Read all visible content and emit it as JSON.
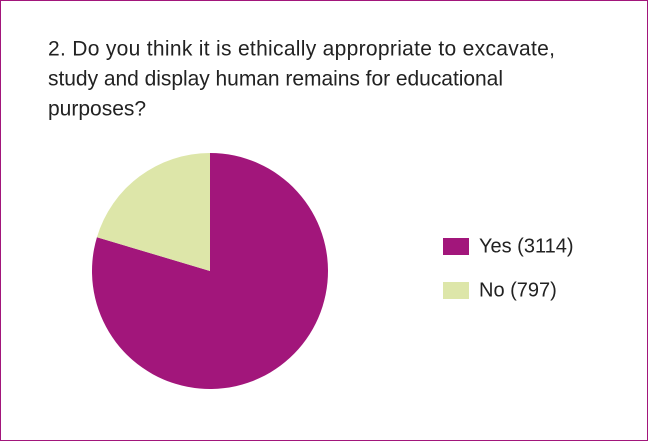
{
  "chart_data": {
    "type": "pie",
    "title": [
      "2. Do you think it is ethically appropriate to excavate,",
      "study and display human remains for educational",
      "purposes?"
    ],
    "categories": [
      "Yes (3114)",
      "No (797)"
    ],
    "values": [
      3114,
      797
    ],
    "colors": [
      "#a2167b",
      "#dde6a9"
    ]
  }
}
